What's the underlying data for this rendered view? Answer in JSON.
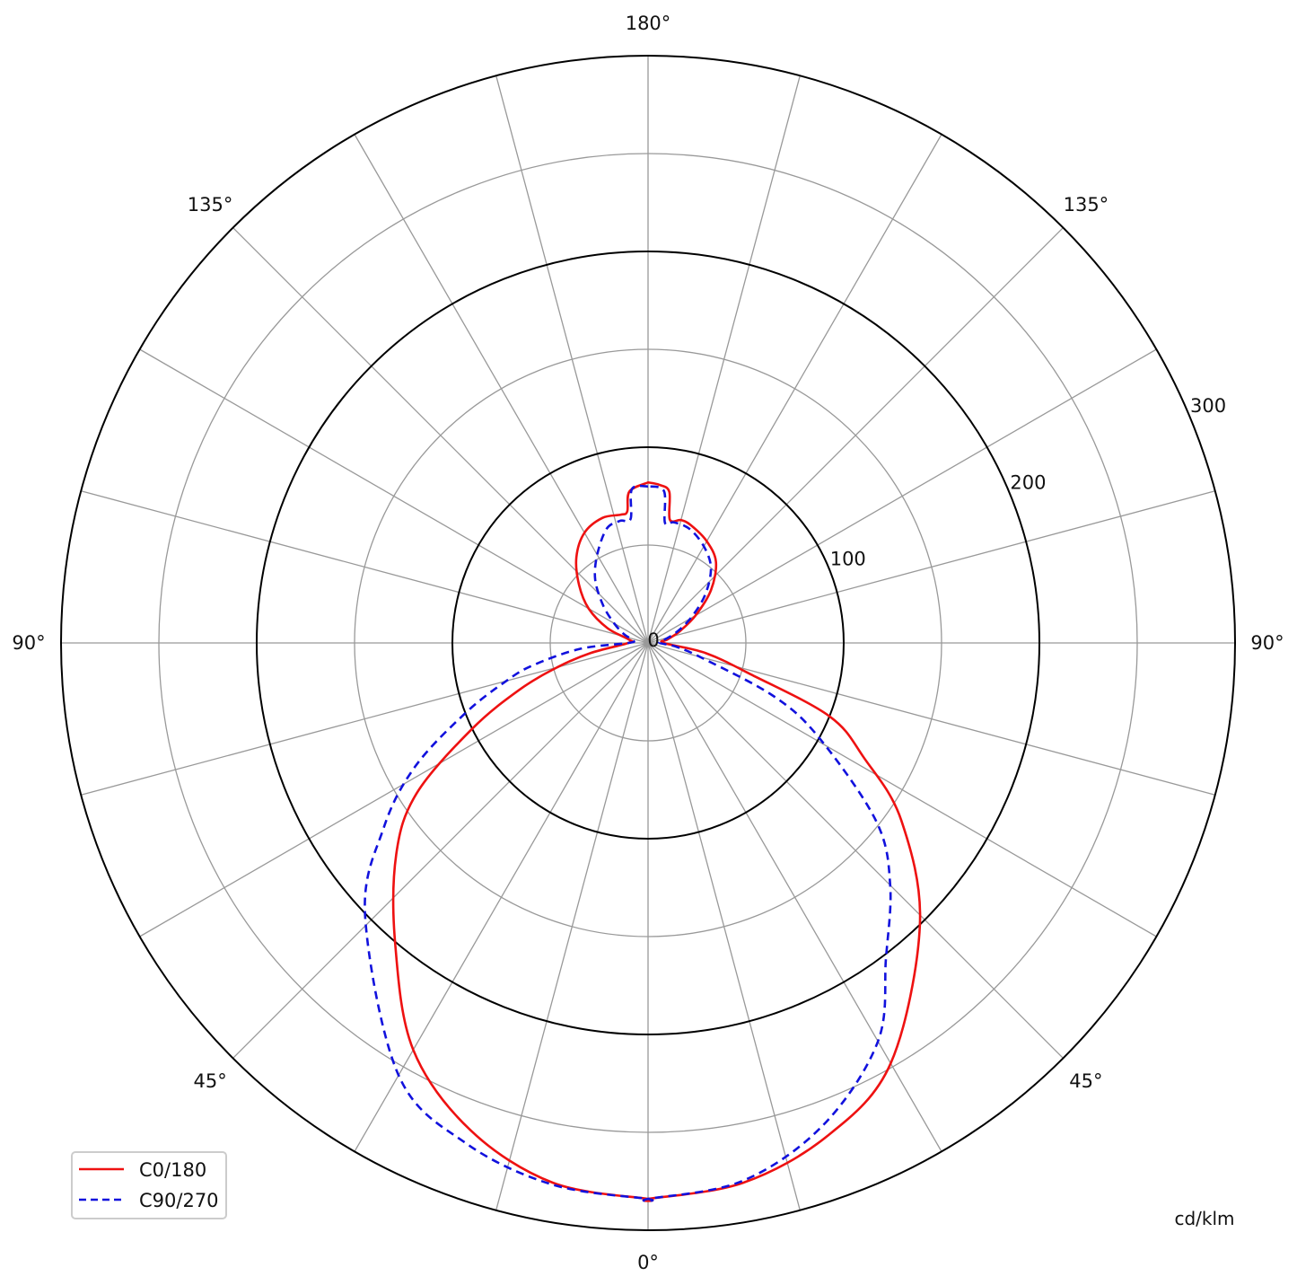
{
  "chart_data": {
    "type": "polar",
    "unit_label": "cd/klm",
    "radial_range": [
      0,
      300
    ],
    "radial_ticks": [
      0,
      100,
      200,
      300
    ],
    "radial_minor_rings": [
      50,
      150,
      250
    ],
    "angle_step_deg": 15,
    "angle_labels": [
      {
        "text": "180°",
        "gamma": 180,
        "side": "center"
      },
      {
        "text": "135°",
        "gamma": 135,
        "side": "left"
      },
      {
        "text": "135°",
        "gamma": 135,
        "side": "right"
      },
      {
        "text": "90°",
        "gamma": 90,
        "side": "left"
      },
      {
        "text": "90°",
        "gamma": 90,
        "side": "right"
      },
      {
        "text": "45°",
        "gamma": 45,
        "side": "left"
      },
      {
        "text": "45°",
        "gamma": 45,
        "side": "right"
      },
      {
        "text": "0°",
        "gamma": 0,
        "side": "center"
      }
    ],
    "grid": true,
    "legend_position": "bottom-left",
    "series": [
      {
        "name": "C0/180",
        "color": "#ee1111",
        "style": "solid",
        "left": [
          [
            0,
            284
          ],
          [
            10,
            280
          ],
          [
            20,
            265
          ],
          [
            30,
            240
          ],
          [
            40,
            201
          ],
          [
            50,
            168
          ],
          [
            57,
            141
          ],
          [
            64,
            100
          ],
          [
            70,
            70
          ],
          [
            75,
            48
          ],
          [
            80,
            30
          ],
          [
            90,
            10
          ],
          [
            100,
            10
          ],
          [
            110,
            22
          ],
          [
            120,
            35
          ],
          [
            130,
            46
          ],
          [
            140,
            57
          ],
          [
            150,
            65
          ],
          [
            160,
            68
          ],
          [
            168,
            67
          ],
          [
            171,
            68
          ],
          [
            173,
            78
          ],
          [
            180,
            82
          ]
        ],
        "right": [
          [
            0,
            284
          ],
          [
            10,
            280
          ],
          [
            20,
            268
          ],
          [
            30,
            248
          ],
          [
            44,
            200
          ],
          [
            55,
            158
          ],
          [
            62,
            125
          ],
          [
            68,
            100
          ],
          [
            73,
            55
          ],
          [
            80,
            30
          ],
          [
            90,
            8
          ],
          [
            100,
            10
          ],
          [
            110,
            17
          ],
          [
            120,
            28
          ],
          [
            130,
            42
          ],
          [
            140,
            54
          ],
          [
            150,
            60
          ],
          [
            160,
            64
          ],
          [
            165,
            65
          ],
          [
            170,
            64
          ],
          [
            172,
            78
          ],
          [
            176,
            81
          ],
          [
            180,
            82
          ]
        ]
      },
      {
        "name": "C90/270",
        "color": "#1111dd",
        "style": "dashed",
        "left": [
          [
            0,
            284
          ],
          [
            10,
            281
          ],
          [
            20,
            272
          ],
          [
            30,
            255
          ],
          [
            46,
            201
          ],
          [
            55,
            165
          ],
          [
            62,
            135
          ],
          [
            69,
            100
          ],
          [
            75,
            75
          ],
          [
            79,
            60
          ],
          [
            85,
            35
          ],
          [
            90,
            10
          ],
          [
            100,
            8
          ],
          [
            110,
            13
          ],
          [
            120,
            20
          ],
          [
            130,
            30
          ],
          [
            140,
            42
          ],
          [
            150,
            52
          ],
          [
            160,
            62
          ],
          [
            167,
            64
          ],
          [
            172,
            64
          ],
          [
            174,
            79
          ],
          [
            180,
            80
          ]
        ],
        "right": [
          [
            0,
            284
          ],
          [
            10,
            279
          ],
          [
            20,
            262
          ],
          [
            30,
            235
          ],
          [
            37,
            202
          ],
          [
            45,
            175
          ],
          [
            52,
            148
          ],
          [
            61,
            100
          ],
          [
            67,
            70
          ],
          [
            74,
            30
          ],
          [
            82,
            15
          ],
          [
            90,
            6
          ],
          [
            100,
            8
          ],
          [
            110,
            15
          ],
          [
            120,
            25
          ],
          [
            130,
            38
          ],
          [
            140,
            50
          ],
          [
            150,
            57
          ],
          [
            160,
            62
          ],
          [
            168,
            63
          ],
          [
            172,
            62
          ],
          [
            174,
            78
          ],
          [
            180,
            80
          ]
        ]
      }
    ]
  }
}
